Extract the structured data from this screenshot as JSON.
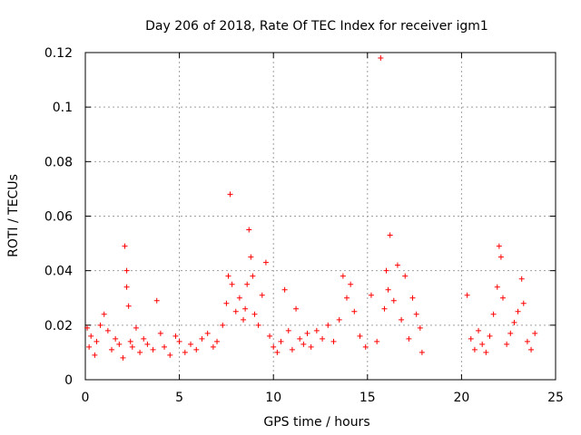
{
  "chart_data": {
    "type": "scatter",
    "title": "Day 206 of 2018, Rate Of TEC Index for receiver igm1",
    "xlabel": "GPS time / hours",
    "ylabel": "ROTI / TECUs",
    "xlim": [
      0,
      25
    ],
    "ylim": [
      0,
      0.12
    ],
    "xticks": [
      0,
      5,
      10,
      15,
      20,
      25
    ],
    "xtick_labels": [
      "0",
      "5",
      "10",
      "15",
      "20",
      "25"
    ],
    "yticks": [
      0,
      0.02,
      0.04,
      0.06,
      0.08,
      0.1,
      0.12
    ],
    "ytick_labels": [
      "0",
      "0.02",
      "0.04",
      "0.06",
      "0.08",
      "0.1",
      "0.12"
    ],
    "grid": true,
    "legend": "none",
    "marker": "+",
    "series_color": "#ff0000",
    "series": [
      {
        "name": "ROTI",
        "x": [
          0.1,
          0.2,
          0.3,
          0.5,
          0.6,
          0.8,
          1.0,
          1.2,
          1.4,
          1.6,
          1.8,
          2.0,
          2.1,
          2.2,
          2.2,
          2.3,
          2.4,
          2.5,
          2.7,
          2.9,
          3.1,
          3.3,
          3.6,
          3.8,
          4.0,
          4.2,
          4.5,
          4.8,
          5.0,
          5.3,
          5.6,
          5.9,
          6.2,
          6.5,
          6.8,
          7.0,
          7.3,
          7.5,
          7.6,
          7.7,
          7.8,
          8.0,
          8.2,
          8.4,
          8.5,
          8.6,
          8.7,
          8.8,
          8.9,
          9.0,
          9.2,
          9.4,
          9.6,
          9.8,
          10.0,
          10.2,
          10.4,
          10.6,
          10.8,
          11.0,
          11.2,
          11.4,
          11.6,
          11.8,
          12.0,
          12.3,
          12.6,
          12.9,
          13.2,
          13.5,
          13.7,
          13.9,
          14.1,
          14.3,
          14.6,
          14.9,
          15.2,
          15.5,
          15.7,
          15.9,
          16.0,
          16.1,
          16.2,
          16.4,
          16.6,
          16.8,
          17.0,
          17.2,
          17.4,
          17.6,
          17.8,
          17.9,
          20.3,
          20.5,
          20.7,
          20.9,
          21.1,
          21.3,
          21.5,
          21.7,
          21.9,
          22.0,
          22.1,
          22.2,
          22.4,
          22.6,
          22.8,
          23.0,
          23.2,
          23.3,
          23.5,
          23.7,
          23.9
        ],
        "y": [
          0.019,
          0.012,
          0.016,
          0.009,
          0.014,
          0.02,
          0.024,
          0.018,
          0.011,
          0.015,
          0.013,
          0.008,
          0.049,
          0.034,
          0.04,
          0.027,
          0.014,
          0.012,
          0.019,
          0.01,
          0.015,
          0.013,
          0.011,
          0.029,
          0.017,
          0.012,
          0.009,
          0.016,
          0.014,
          0.01,
          0.013,
          0.011,
          0.015,
          0.017,
          0.012,
          0.014,
          0.02,
          0.028,
          0.038,
          0.068,
          0.035,
          0.025,
          0.03,
          0.022,
          0.026,
          0.035,
          0.055,
          0.045,
          0.038,
          0.024,
          0.02,
          0.031,
          0.043,
          0.016,
          0.012,
          0.01,
          0.014,
          0.033,
          0.018,
          0.011,
          0.026,
          0.015,
          0.013,
          0.017,
          0.012,
          0.018,
          0.015,
          0.02,
          0.014,
          0.022,
          0.038,
          0.03,
          0.035,
          0.025,
          0.016,
          0.012,
          0.031,
          0.014,
          0.118,
          0.026,
          0.04,
          0.033,
          0.053,
          0.029,
          0.042,
          0.022,
          0.038,
          0.015,
          0.03,
          0.024,
          0.019,
          0.01,
          0.031,
          0.015,
          0.011,
          0.018,
          0.013,
          0.01,
          0.016,
          0.024,
          0.034,
          0.049,
          0.045,
          0.03,
          0.013,
          0.017,
          0.021,
          0.025,
          0.037,
          0.028,
          0.014,
          0.011,
          0.017
        ]
      }
    ]
  }
}
